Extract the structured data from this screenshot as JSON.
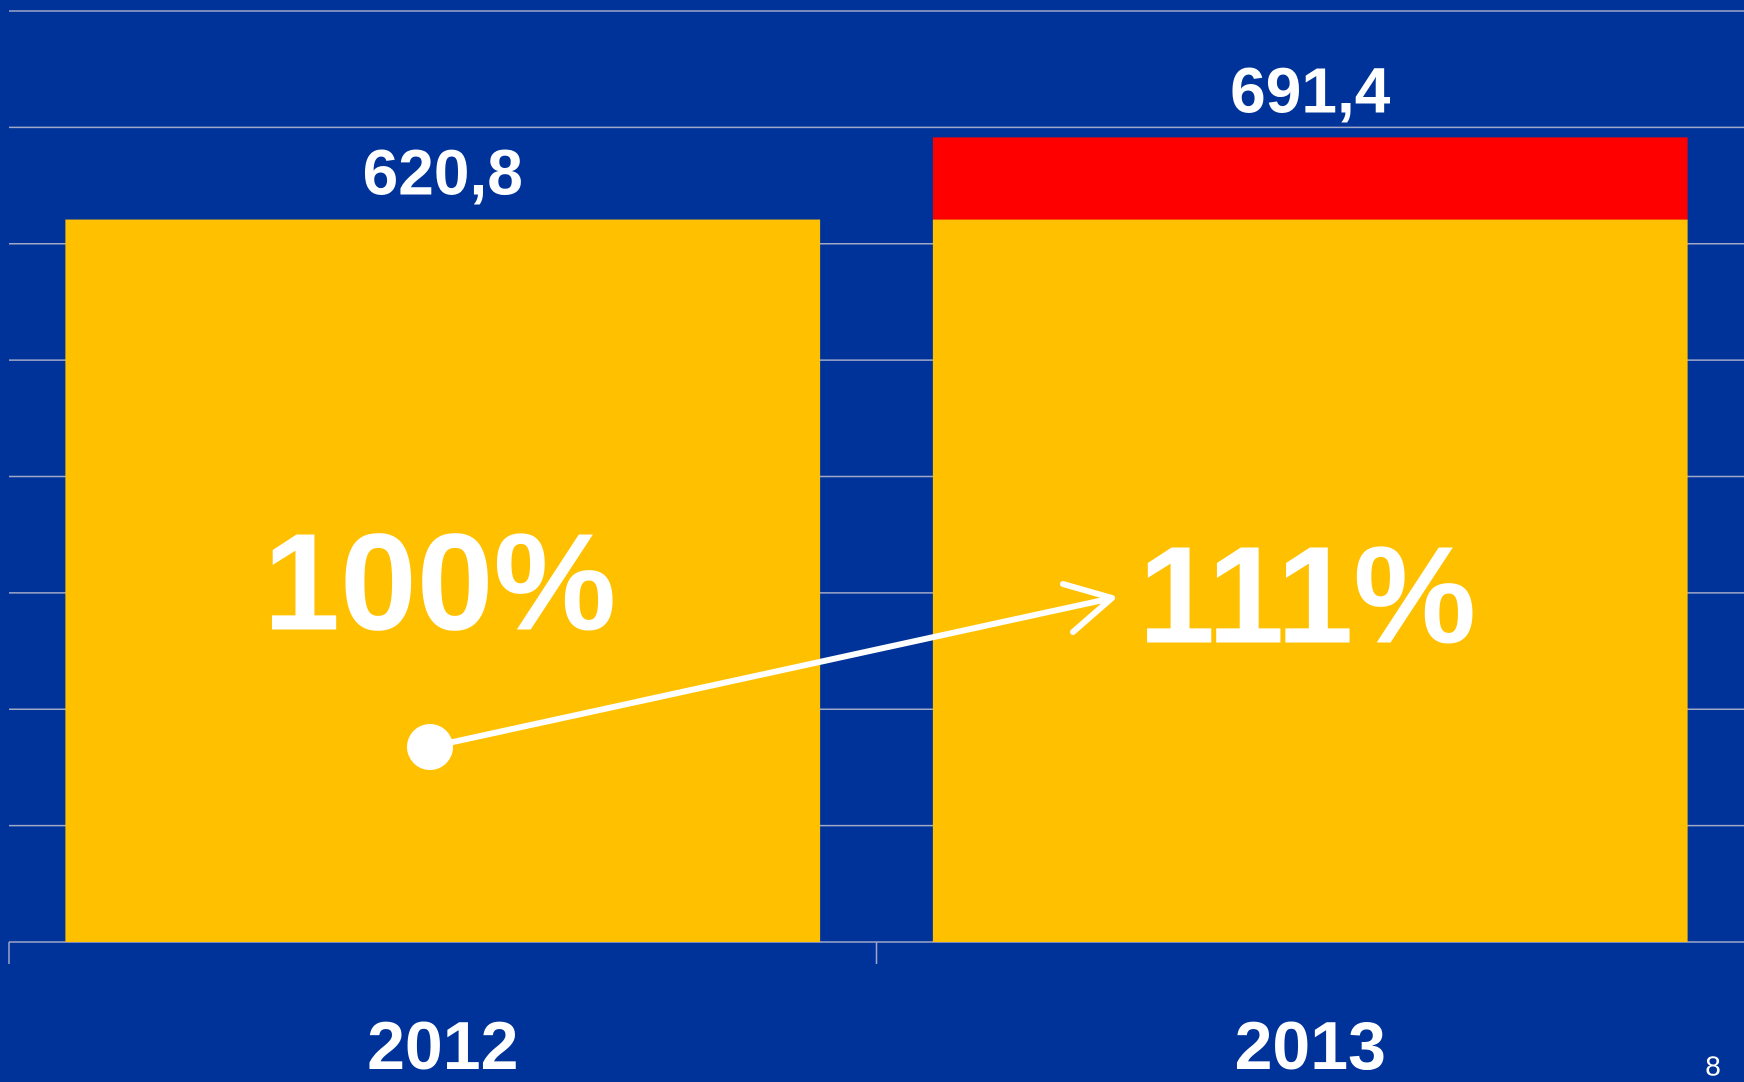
{
  "chart_data": {
    "type": "stacked_bar",
    "categories": [
      "2012",
      "2013"
    ],
    "series": [
      {
        "color": "#ffc000",
        "values": [
          620.8,
          620.8
        ]
      },
      {
        "color": "#ff0000",
        "values": [
          null,
          70.6
        ]
      }
    ],
    "totals": [
      620.8,
      691.4
    ],
    "total_labels": [
      "620,8",
      "691,4"
    ],
    "growth": [
      100,
      111
    ],
    "growth_labels": [
      "100%",
      "111%"
    ],
    "ylim": [
      0,
      800
    ],
    "yticks": [
      0,
      100,
      200,
      300,
      400,
      500,
      600,
      700,
      800
    ],
    "grid": true,
    "page_number": "8"
  }
}
